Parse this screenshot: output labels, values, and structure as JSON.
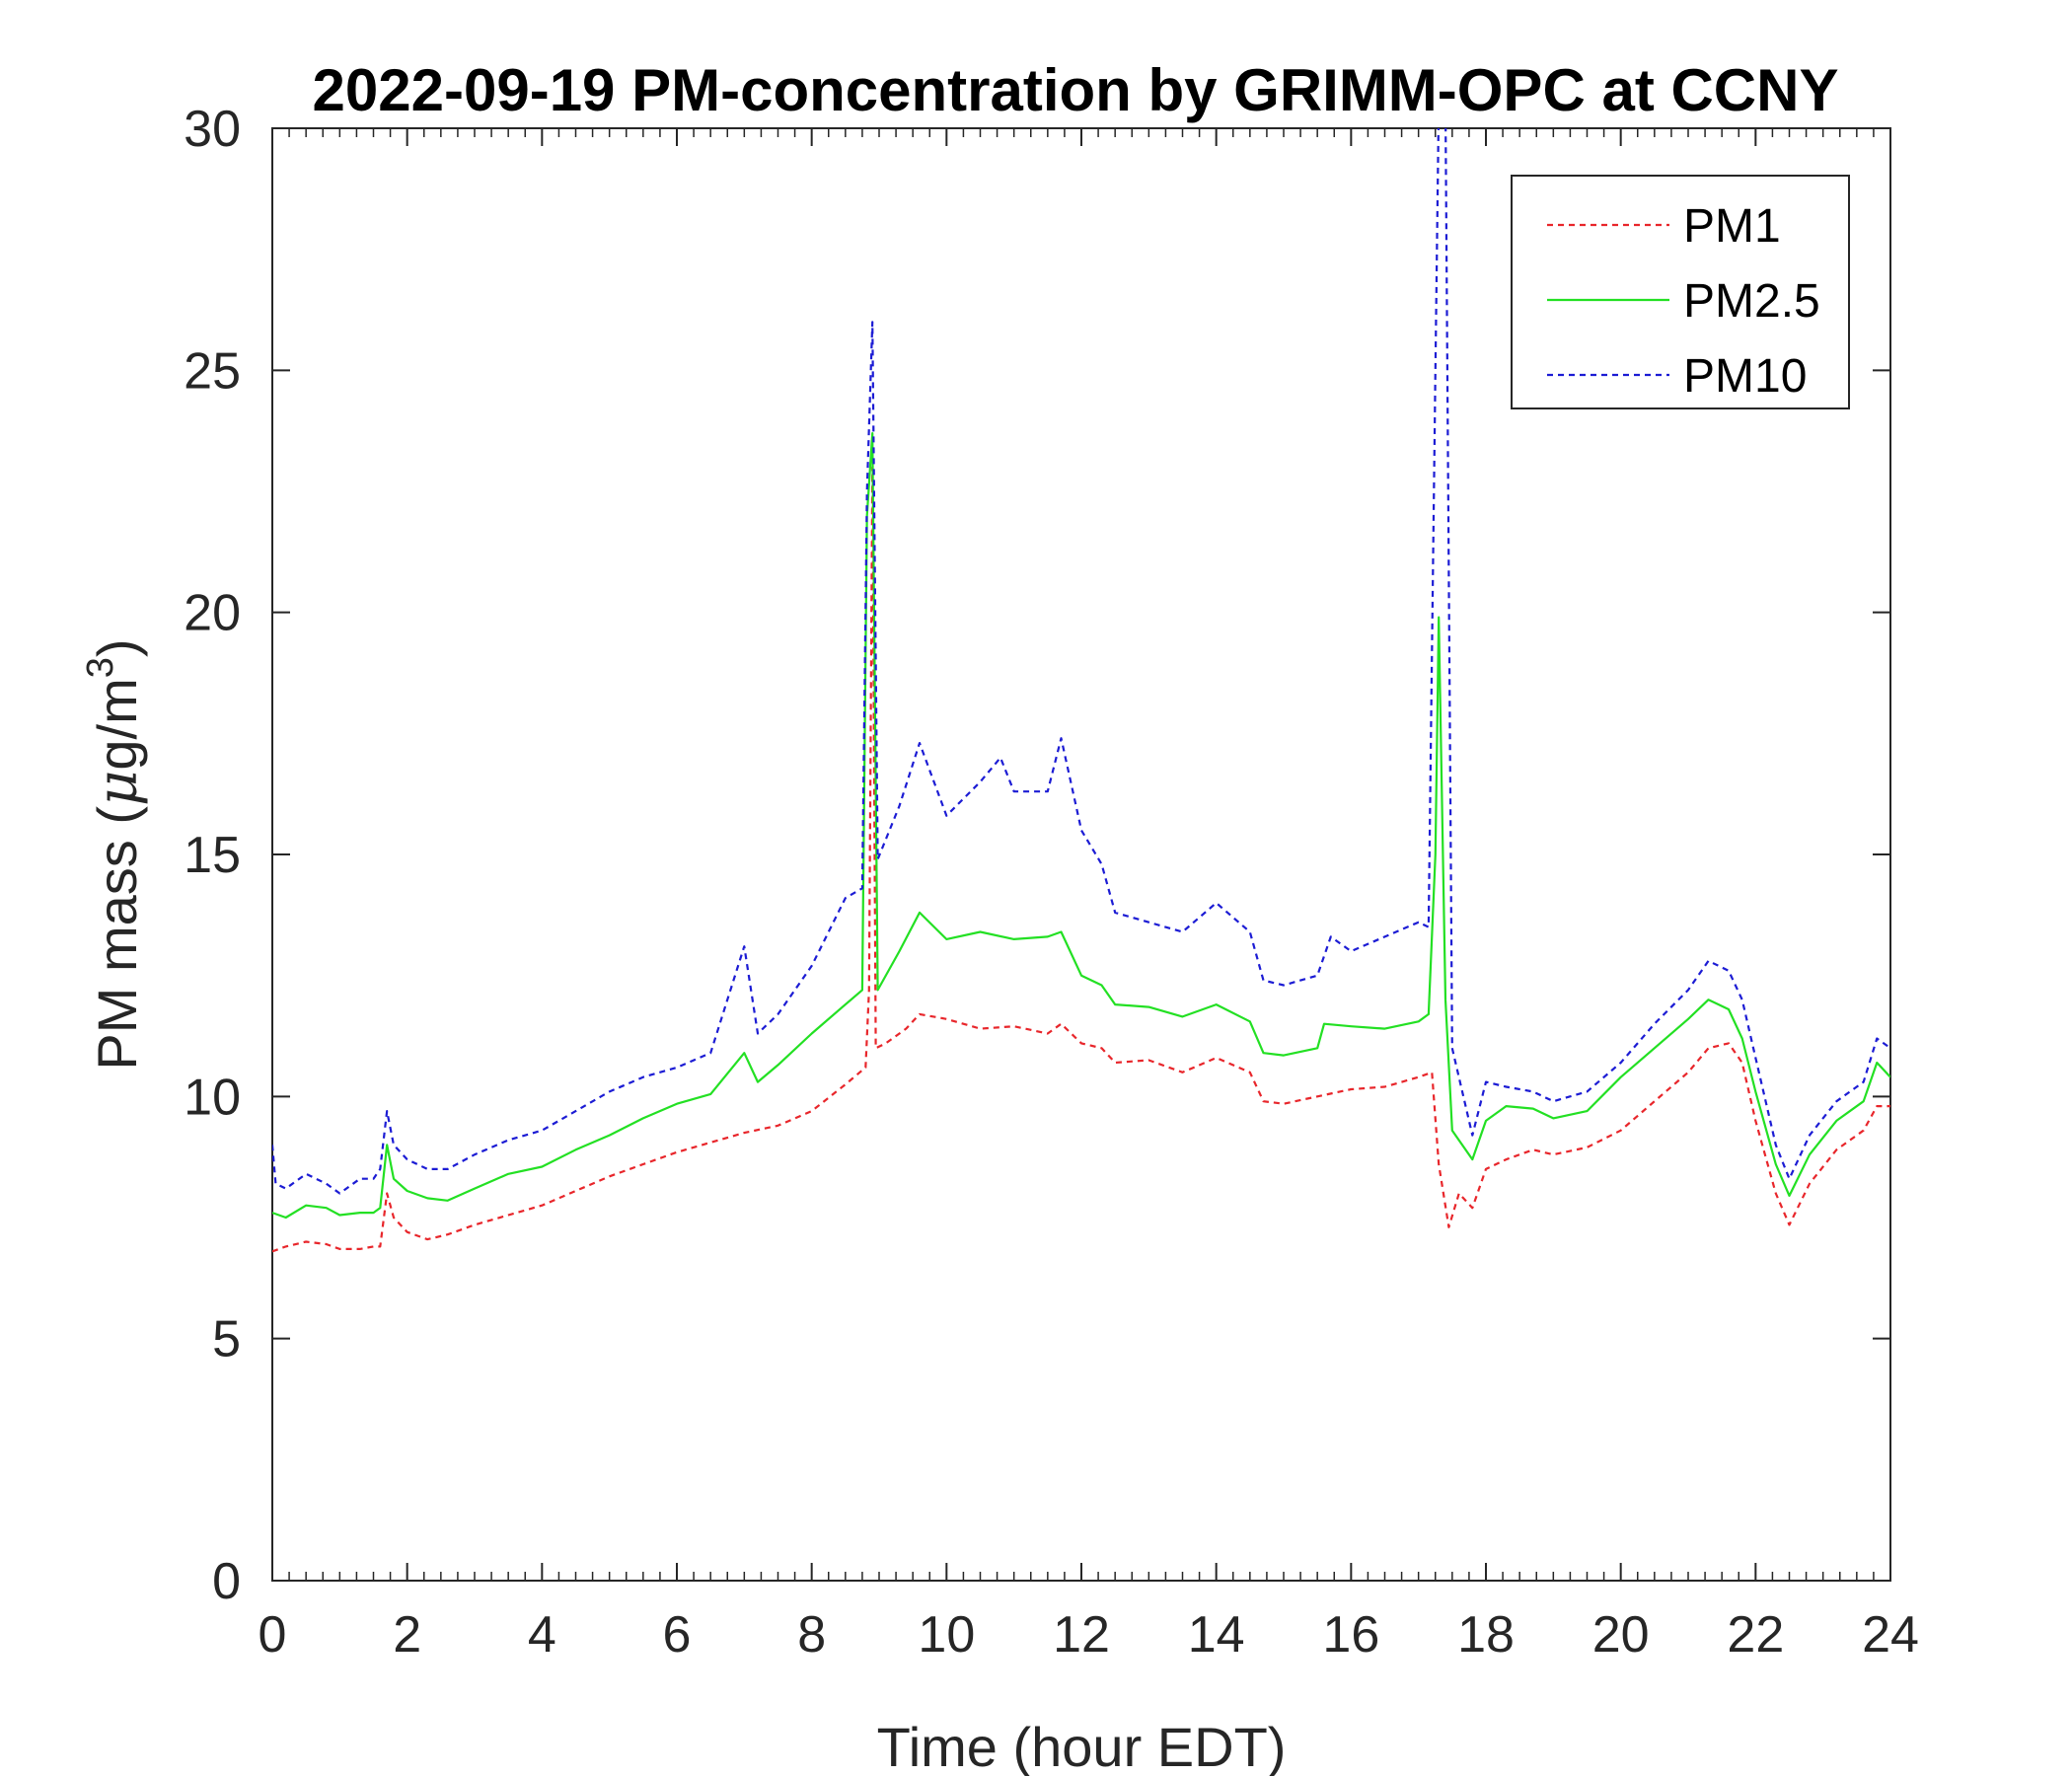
{
  "chart_data": {
    "type": "line",
    "title": "2022-09-19 PM-concentration by GRIMM-OPC at CCNY",
    "xlabel": "Time (hour EDT)",
    "ylabel": {
      "prefix": "PM mass (",
      "mu": "μ",
      "unit": "g/m",
      "superscript": "3",
      "suffix": ")"
    },
    "xlim": [
      0,
      24
    ],
    "ylim": [
      0,
      30
    ],
    "x_ticks": [
      0,
      2,
      4,
      6,
      8,
      10,
      12,
      14,
      16,
      18,
      20,
      22,
      24
    ],
    "y_ticks": [
      0,
      5,
      10,
      15,
      20,
      25,
      30
    ],
    "grid": false,
    "legend_position": "top-right",
    "series": [
      {
        "name": "PM1",
        "color": "#e8262b",
        "style": "dashed",
        "points": [
          [
            0,
            6.8
          ],
          [
            0.2,
            6.9
          ],
          [
            0.5,
            7.0
          ],
          [
            0.8,
            6.95
          ],
          [
            1.0,
            6.85
          ],
          [
            1.3,
            6.85
          ],
          [
            1.5,
            6.9
          ],
          [
            1.6,
            6.9
          ],
          [
            1.7,
            8.0
          ],
          [
            1.8,
            7.5
          ],
          [
            2.0,
            7.2
          ],
          [
            2.3,
            7.05
          ],
          [
            2.6,
            7.15
          ],
          [
            3.0,
            7.35
          ],
          [
            3.5,
            7.55
          ],
          [
            4.0,
            7.75
          ],
          [
            4.5,
            8.05
          ],
          [
            5.0,
            8.35
          ],
          [
            5.5,
            8.6
          ],
          [
            6.0,
            8.85
          ],
          [
            6.5,
            9.05
          ],
          [
            7.0,
            9.25
          ],
          [
            7.5,
            9.4
          ],
          [
            8.0,
            9.7
          ],
          [
            8.5,
            10.25
          ],
          [
            8.8,
            10.6
          ],
          [
            8.85,
            12.2
          ],
          [
            8.9,
            23.0
          ],
          [
            8.95,
            11.0
          ],
          [
            9.1,
            11.1
          ],
          [
            9.4,
            11.4
          ],
          [
            9.6,
            11.7
          ],
          [
            10.0,
            11.6
          ],
          [
            10.5,
            11.4
          ],
          [
            11.0,
            11.45
          ],
          [
            11.5,
            11.3
          ],
          [
            11.7,
            11.5
          ],
          [
            12.0,
            11.1
          ],
          [
            12.3,
            11.0
          ],
          [
            12.5,
            10.7
          ],
          [
            13.0,
            10.75
          ],
          [
            13.5,
            10.5
          ],
          [
            14.0,
            10.8
          ],
          [
            14.5,
            10.5
          ],
          [
            14.7,
            9.9
          ],
          [
            15.0,
            9.85
          ],
          [
            15.5,
            10.0
          ],
          [
            16.0,
            10.15
          ],
          [
            16.5,
            10.2
          ],
          [
            17.0,
            10.4
          ],
          [
            17.2,
            10.5
          ],
          [
            17.3,
            8.6
          ],
          [
            17.45,
            7.3
          ],
          [
            17.6,
            8.0
          ],
          [
            17.8,
            7.7
          ],
          [
            18.0,
            8.5
          ],
          [
            18.3,
            8.7
          ],
          [
            18.7,
            8.9
          ],
          [
            19.0,
            8.8
          ],
          [
            19.5,
            8.95
          ],
          [
            20.0,
            9.3
          ],
          [
            20.5,
            9.9
          ],
          [
            21.0,
            10.5
          ],
          [
            21.3,
            11.0
          ],
          [
            21.6,
            11.1
          ],
          [
            21.8,
            10.7
          ],
          [
            22.0,
            9.5
          ],
          [
            22.3,
            8.0
          ],
          [
            22.5,
            7.35
          ],
          [
            22.8,
            8.2
          ],
          [
            23.2,
            8.9
          ],
          [
            23.6,
            9.3
          ],
          [
            23.8,
            9.8
          ],
          [
            24.0,
            9.8
          ]
        ]
      },
      {
        "name": "PM2.5",
        "color": "#23e023",
        "style": "solid",
        "points": [
          [
            0,
            7.6
          ],
          [
            0.2,
            7.5
          ],
          [
            0.5,
            7.75
          ],
          [
            0.8,
            7.7
          ],
          [
            1.0,
            7.55
          ],
          [
            1.3,
            7.6
          ],
          [
            1.5,
            7.6
          ],
          [
            1.6,
            7.7
          ],
          [
            1.7,
            9.0
          ],
          [
            1.8,
            8.3
          ],
          [
            2.0,
            8.05
          ],
          [
            2.3,
            7.9
          ],
          [
            2.6,
            7.85
          ],
          [
            3.0,
            8.1
          ],
          [
            3.5,
            8.4
          ],
          [
            4.0,
            8.55
          ],
          [
            4.5,
            8.9
          ],
          [
            5.0,
            9.2
          ],
          [
            5.5,
            9.55
          ],
          [
            6.0,
            9.85
          ],
          [
            6.5,
            10.05
          ],
          [
            7.0,
            10.9
          ],
          [
            7.2,
            10.3
          ],
          [
            7.5,
            10.65
          ],
          [
            8.0,
            11.3
          ],
          [
            8.5,
            11.9
          ],
          [
            8.75,
            12.2
          ],
          [
            8.82,
            22.0
          ],
          [
            8.9,
            23.7
          ],
          [
            8.98,
            12.2
          ],
          [
            9.3,
            13.0
          ],
          [
            9.6,
            13.8
          ],
          [
            10.0,
            13.25
          ],
          [
            10.5,
            13.4
          ],
          [
            11.0,
            13.25
          ],
          [
            11.5,
            13.3
          ],
          [
            11.7,
            13.4
          ],
          [
            12.0,
            12.5
          ],
          [
            12.3,
            12.3
          ],
          [
            12.5,
            11.9
          ],
          [
            13.0,
            11.85
          ],
          [
            13.5,
            11.65
          ],
          [
            14.0,
            11.9
          ],
          [
            14.5,
            11.55
          ],
          [
            14.7,
            10.9
          ],
          [
            15.0,
            10.85
          ],
          [
            15.5,
            11.0
          ],
          [
            15.6,
            11.5
          ],
          [
            16.0,
            11.45
          ],
          [
            16.5,
            11.4
          ],
          [
            17.0,
            11.55
          ],
          [
            17.15,
            11.7
          ],
          [
            17.25,
            15.0
          ],
          [
            17.3,
            19.9
          ],
          [
            17.4,
            12.0
          ],
          [
            17.5,
            9.3
          ],
          [
            17.8,
            8.7
          ],
          [
            18.0,
            9.5
          ],
          [
            18.3,
            9.8
          ],
          [
            18.7,
            9.75
          ],
          [
            19.0,
            9.55
          ],
          [
            19.5,
            9.7
          ],
          [
            20.0,
            10.4
          ],
          [
            20.5,
            11.0
          ],
          [
            21.0,
            11.6
          ],
          [
            21.3,
            12.0
          ],
          [
            21.6,
            11.8
          ],
          [
            21.8,
            11.2
          ],
          [
            22.0,
            10.1
          ],
          [
            22.3,
            8.6
          ],
          [
            22.5,
            7.95
          ],
          [
            22.8,
            8.8
          ],
          [
            23.2,
            9.5
          ],
          [
            23.6,
            9.9
          ],
          [
            23.8,
            10.7
          ],
          [
            24.0,
            10.4
          ]
        ]
      },
      {
        "name": "PM10",
        "color": "#1c1cd4",
        "style": "dashed",
        "points": [
          [
            0,
            9.0
          ],
          [
            0.05,
            8.2
          ],
          [
            0.2,
            8.1
          ],
          [
            0.5,
            8.4
          ],
          [
            0.8,
            8.2
          ],
          [
            1.0,
            8.0
          ],
          [
            1.3,
            8.3
          ],
          [
            1.5,
            8.3
          ],
          [
            1.6,
            8.5
          ],
          [
            1.7,
            9.7
          ],
          [
            1.8,
            9.0
          ],
          [
            2.0,
            8.7
          ],
          [
            2.3,
            8.5
          ],
          [
            2.6,
            8.5
          ],
          [
            3.0,
            8.8
          ],
          [
            3.5,
            9.1
          ],
          [
            4.0,
            9.3
          ],
          [
            4.5,
            9.7
          ],
          [
            5.0,
            10.1
          ],
          [
            5.5,
            10.4
          ],
          [
            6.0,
            10.6
          ],
          [
            6.5,
            10.9
          ],
          [
            7.0,
            13.1
          ],
          [
            7.2,
            11.3
          ],
          [
            7.5,
            11.7
          ],
          [
            8.0,
            12.7
          ],
          [
            8.5,
            14.1
          ],
          [
            8.75,
            14.3
          ],
          [
            8.82,
            22.5
          ],
          [
            8.9,
            26.0
          ],
          [
            8.98,
            14.9
          ],
          [
            9.3,
            16.0
          ],
          [
            9.6,
            17.3
          ],
          [
            10.0,
            15.8
          ],
          [
            10.5,
            16.5
          ],
          [
            10.8,
            17.0
          ],
          [
            11.0,
            16.3
          ],
          [
            11.5,
            16.3
          ],
          [
            11.7,
            17.4
          ],
          [
            12.0,
            15.5
          ],
          [
            12.3,
            14.8
          ],
          [
            12.5,
            13.8
          ],
          [
            13.0,
            13.6
          ],
          [
            13.5,
            13.4
          ],
          [
            14.0,
            14.0
          ],
          [
            14.5,
            13.4
          ],
          [
            14.7,
            12.4
          ],
          [
            15.0,
            12.3
          ],
          [
            15.5,
            12.5
          ],
          [
            15.7,
            13.3
          ],
          [
            16.0,
            13.0
          ],
          [
            16.5,
            13.3
          ],
          [
            17.0,
            13.6
          ],
          [
            17.15,
            13.5
          ],
          [
            17.25,
            25.0
          ],
          [
            17.3,
            30.5
          ],
          [
            17.4,
            30.5
          ],
          [
            17.5,
            11.0
          ],
          [
            17.8,
            9.2
          ],
          [
            18.0,
            10.3
          ],
          [
            18.3,
            10.2
          ],
          [
            18.7,
            10.1
          ],
          [
            19.0,
            9.9
          ],
          [
            19.5,
            10.1
          ],
          [
            20.0,
            10.7
          ],
          [
            20.5,
            11.5
          ],
          [
            21.0,
            12.2
          ],
          [
            21.3,
            12.8
          ],
          [
            21.6,
            12.6
          ],
          [
            21.8,
            12.0
          ],
          [
            22.0,
            10.8
          ],
          [
            22.3,
            9.0
          ],
          [
            22.5,
            8.3
          ],
          [
            22.8,
            9.2
          ],
          [
            23.2,
            9.9
          ],
          [
            23.6,
            10.3
          ],
          [
            23.8,
            11.2
          ],
          [
            24.0,
            11.0
          ]
        ]
      }
    ]
  }
}
